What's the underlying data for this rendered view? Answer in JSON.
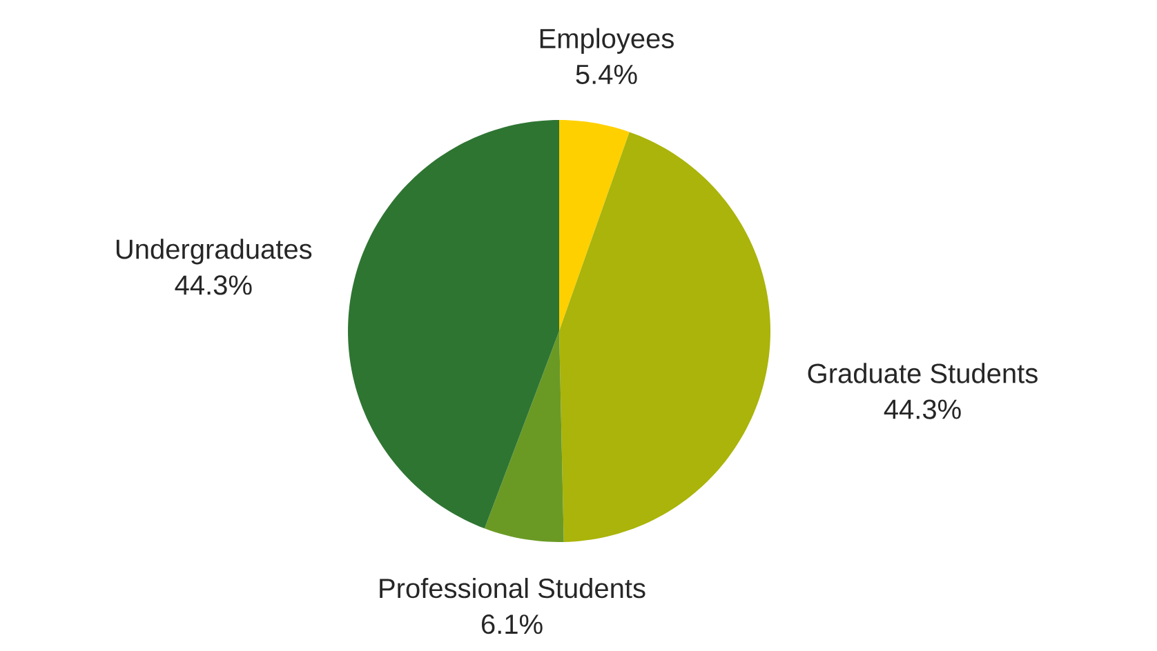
{
  "chart_data": {
    "type": "pie",
    "categories": [
      "Employees",
      "Graduate Students",
      "Professional Students",
      "Undergraduates"
    ],
    "values": [
      5.4,
      44.3,
      6.1,
      44.3
    ],
    "value_labels": [
      "5.4%",
      "44.3%",
      "6.1%",
      "44.3%"
    ],
    "colors": [
      "#ffd000",
      "#aab40a",
      "#6a9a24",
      "#2e7532"
    ]
  }
}
